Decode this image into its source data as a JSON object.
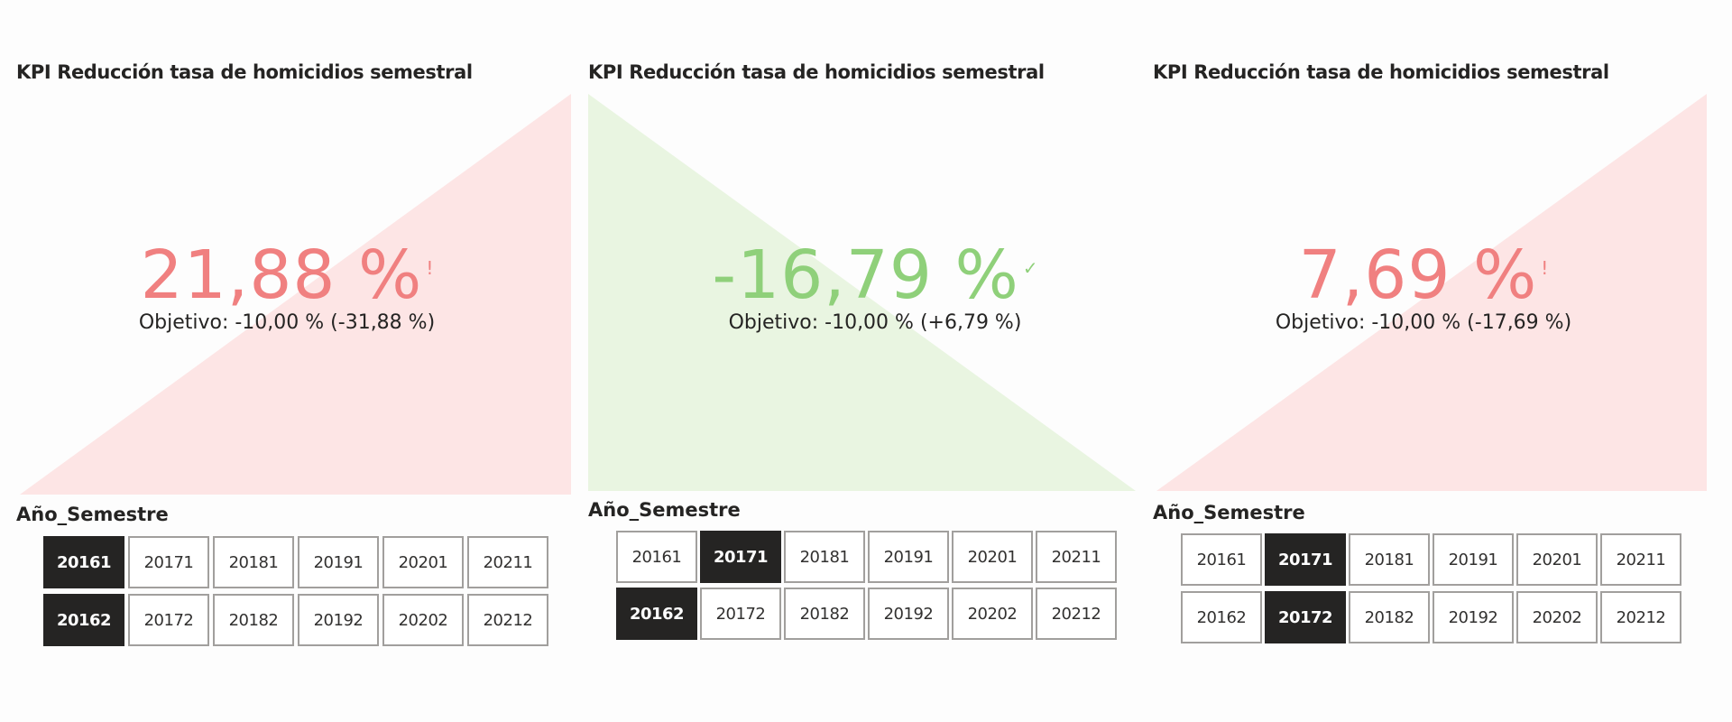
{
  "colors": {
    "red_text": "#f28b8b",
    "red_fill": "#fde5e5",
    "green_text": "#8fd07a",
    "green_fill": "#e9f5e1",
    "selected_chip": "#252423"
  },
  "panels": [
    {
      "title": "KPI Reducción tasa de homicidios semestral",
      "value": "21,88 %",
      "status": "bad",
      "flag": "!",
      "goal": "Objetivo: -10,00 % (-31,88 %)",
      "slicer_title": "Año_Semestre",
      "rows": [
        [
          {
            "label": "20161",
            "selected": true
          },
          {
            "label": "20171",
            "selected": false
          },
          {
            "label": "20181",
            "selected": false
          },
          {
            "label": "20191",
            "selected": false
          },
          {
            "label": "20201",
            "selected": false
          },
          {
            "label": "20211",
            "selected": false
          }
        ],
        [
          {
            "label": "20162",
            "selected": true
          },
          {
            "label": "20172",
            "selected": false
          },
          {
            "label": "20182",
            "selected": false
          },
          {
            "label": "20192",
            "selected": false
          },
          {
            "label": "20202",
            "selected": false
          },
          {
            "label": "20212",
            "selected": false
          }
        ]
      ]
    },
    {
      "title": "KPI Reducción tasa de homicidios semestral",
      "value": "-16,79 %",
      "status": "good",
      "flag": "✓",
      "goal": "Objetivo: -10,00 % (+6,79 %)",
      "slicer_title": "Año_Semestre",
      "rows": [
        [
          {
            "label": "20161",
            "selected": false
          },
          {
            "label": "20171",
            "selected": true
          },
          {
            "label": "20181",
            "selected": false
          },
          {
            "label": "20191",
            "selected": false
          },
          {
            "label": "20201",
            "selected": false
          },
          {
            "label": "20211",
            "selected": false
          }
        ],
        [
          {
            "label": "20162",
            "selected": true
          },
          {
            "label": "20172",
            "selected": false
          },
          {
            "label": "20182",
            "selected": false
          },
          {
            "label": "20192",
            "selected": false
          },
          {
            "label": "20202",
            "selected": false
          },
          {
            "label": "20212",
            "selected": false
          }
        ]
      ]
    },
    {
      "title": "KPI Reducción tasa de homicidios semestral",
      "value": "7,69 %",
      "status": "bad",
      "flag": "!",
      "goal": "Objetivo: -10,00 % (-17,69 %)",
      "slicer_title": "Año_Semestre",
      "rows": [
        [
          {
            "label": "20161",
            "selected": false
          },
          {
            "label": "20171",
            "selected": true
          },
          {
            "label": "20181",
            "selected": false
          },
          {
            "label": "20191",
            "selected": false
          },
          {
            "label": "20201",
            "selected": false
          },
          {
            "label": "20211",
            "selected": false
          }
        ],
        [
          {
            "label": "20162",
            "selected": false
          },
          {
            "label": "20172",
            "selected": true
          },
          {
            "label": "20182",
            "selected": false
          },
          {
            "label": "20192",
            "selected": false
          },
          {
            "label": "20202",
            "selected": false
          },
          {
            "label": "20212",
            "selected": false
          }
        ]
      ]
    }
  ]
}
